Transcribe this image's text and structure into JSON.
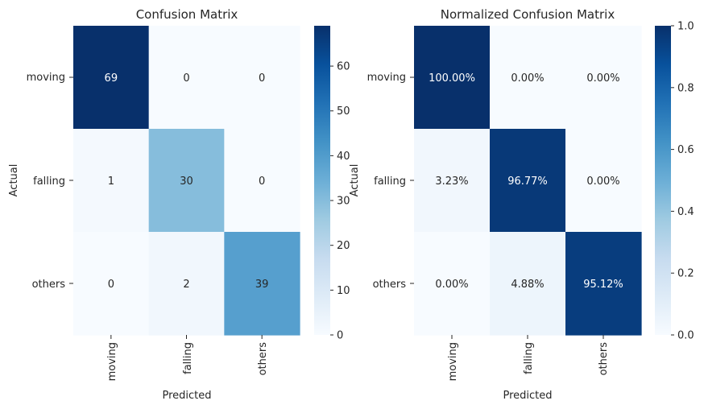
{
  "chart_data": [
    {
      "type": "heatmap",
      "title": "Confusion Matrix",
      "xlabel": "Predicted",
      "ylabel": "Actual",
      "x_categories": [
        "moving",
        "falling",
        "others"
      ],
      "y_categories": [
        "moving",
        "falling",
        "others"
      ],
      "values": [
        [
          69,
          0,
          0
        ],
        [
          1,
          30,
          0
        ],
        [
          0,
          2,
          39
        ]
      ],
      "cell_labels": [
        [
          "69",
          "0",
          "0"
        ],
        [
          "1",
          "30",
          "0"
        ],
        [
          "0",
          "2",
          "39"
        ]
      ],
      "colorbar": {
        "min": 0,
        "max": 69,
        "ticks": [
          "0",
          "10",
          "20",
          "30",
          "40",
          "50",
          "60"
        ],
        "colormap": "Blues"
      }
    },
    {
      "type": "heatmap",
      "title": "Normalized Confusion Matrix",
      "xlabel": "Predicted",
      "ylabel": "Actual",
      "x_categories": [
        "moving",
        "falling",
        "others"
      ],
      "y_categories": [
        "moving",
        "falling",
        "others"
      ],
      "values": [
        [
          1.0,
          0.0,
          0.0
        ],
        [
          0.0323,
          0.9677,
          0.0
        ],
        [
          0.0,
          0.0488,
          0.9512
        ]
      ],
      "cell_labels": [
        [
          "100.00%",
          "0.00%",
          "0.00%"
        ],
        [
          "3.23%",
          "96.77%",
          "0.00%"
        ],
        [
          "0.00%",
          "4.88%",
          "95.12%"
        ]
      ],
      "colorbar": {
        "min": 0,
        "max": 1,
        "ticks": [
          "0.0",
          "0.2",
          "0.4",
          "0.6",
          "0.8",
          "1.0"
        ],
        "colormap": "Blues"
      }
    }
  ]
}
